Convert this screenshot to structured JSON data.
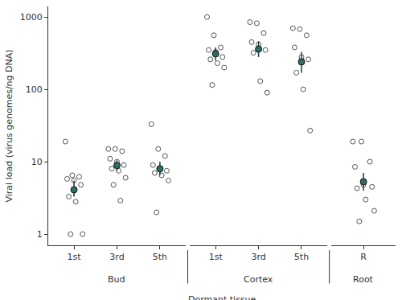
{
  "chart_data": {
    "type": "scatter",
    "log": "y",
    "color": "#2d6e66",
    "marker": "circle",
    "xlabel": "Dormant tissue",
    "ylabel": "Viral load (virus genomes/ng DNA)",
    "ylim": [
      0.7,
      1400
    ],
    "yticks": [
      1,
      10,
      100,
      1000
    ],
    "panels": [
      {
        "label": "Bud",
        "groups": [
          {
            "category": "1st",
            "values": [
              19,
              6.5,
              6.2,
              5.8,
              5.5,
              4.8,
              3.3,
              2.8,
              1.0,
              1.0
            ],
            "mean": 4.1,
            "error_low": 3.3,
            "error_high": 5.5
          },
          {
            "category": "3rd",
            "values": [
              15,
              15,
              14,
              11,
              10,
              9,
              8,
              7.5,
              6,
              4.8,
              2.9
            ],
            "mean": 8.9,
            "error_low": 7.5,
            "error_high": 10.5
          },
          {
            "category": "5th",
            "values": [
              33,
              15,
              12,
              9,
              8,
              7.5,
              7,
              6.5,
              5.5,
              2
            ],
            "mean": 8,
            "error_low": 6.5,
            "error_high": 10
          }
        ]
      },
      {
        "label": "Cortex",
        "groups": [
          {
            "category": "1st",
            "values": [
              1000,
              560,
              380,
              350,
              330,
              280,
              260,
              230,
              200,
              115
            ],
            "mean": 310,
            "error_low": 250,
            "error_high": 380
          },
          {
            "category": "3rd",
            "values": [
              850,
              820,
              600,
              450,
              420,
              350,
              320,
              130,
              90
            ],
            "mean": 360,
            "error_low": 280,
            "error_high": 460
          },
          {
            "category": "5th",
            "values": [
              700,
              680,
              560,
              380,
              280,
              260,
              170,
              100,
              27
            ],
            "mean": 240,
            "error_low": 170,
            "error_high": 330
          }
        ]
      },
      {
        "label": "Root",
        "groups": [
          {
            "category": "R",
            "values": [
              19,
              19,
              10,
              8.5,
              4.8,
              4.5,
              4.3,
              3,
              2.1,
              1.5
            ],
            "mean": 5.3,
            "error_low": 4,
            "error_high": 7
          }
        ]
      }
    ]
  }
}
